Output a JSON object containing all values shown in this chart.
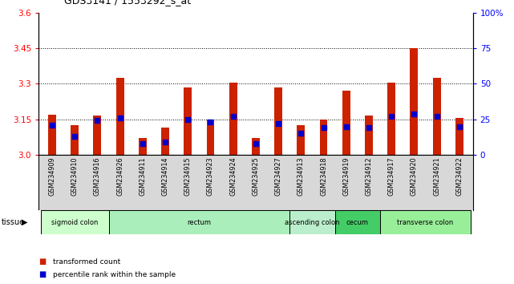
{
  "title": "GDS3141 / 1553292_s_at",
  "samples": [
    "GSM234909",
    "GSM234910",
    "GSM234916",
    "GSM234926",
    "GSM234911",
    "GSM234914",
    "GSM234915",
    "GSM234923",
    "GSM234924",
    "GSM234925",
    "GSM234927",
    "GSM234913",
    "GSM234918",
    "GSM234919",
    "GSM234912",
    "GSM234917",
    "GSM234920",
    "GSM234921",
    "GSM234922"
  ],
  "bar_values": [
    3.17,
    3.125,
    3.165,
    3.325,
    3.07,
    3.115,
    3.285,
    3.15,
    3.305,
    3.07,
    3.285,
    3.125,
    3.15,
    3.27,
    3.165,
    3.305,
    3.45,
    3.325,
    3.155
  ],
  "percentile_values": [
    21,
    13,
    24,
    26,
    8,
    9,
    25,
    23,
    27,
    8,
    22,
    15,
    19,
    20,
    19,
    27,
    29,
    27,
    20
  ],
  "tissues": [
    {
      "label": "sigmoid colon",
      "start": 0,
      "end": 3,
      "color": "#ccffcc"
    },
    {
      "label": "rectum",
      "start": 3,
      "end": 11,
      "color": "#aaeebb"
    },
    {
      "label": "ascending colon",
      "start": 11,
      "end": 13,
      "color": "#bbeecc"
    },
    {
      "label": "cecum",
      "start": 13,
      "end": 15,
      "color": "#44cc66"
    },
    {
      "label": "transverse colon",
      "start": 15,
      "end": 19,
      "color": "#99ee99"
    }
  ],
  "ylim_left": [
    3.0,
    3.6
  ],
  "ylim_right": [
    0,
    100
  ],
  "yticks_left": [
    3.0,
    3.15,
    3.3,
    3.45,
    3.6
  ],
  "yticks_right": [
    0,
    25,
    50,
    75,
    100
  ],
  "bar_color": "#cc2200",
  "dot_color": "#0000cc",
  "grid_lines": [
    3.15,
    3.3,
    3.45
  ],
  "bar_width": 0.35
}
